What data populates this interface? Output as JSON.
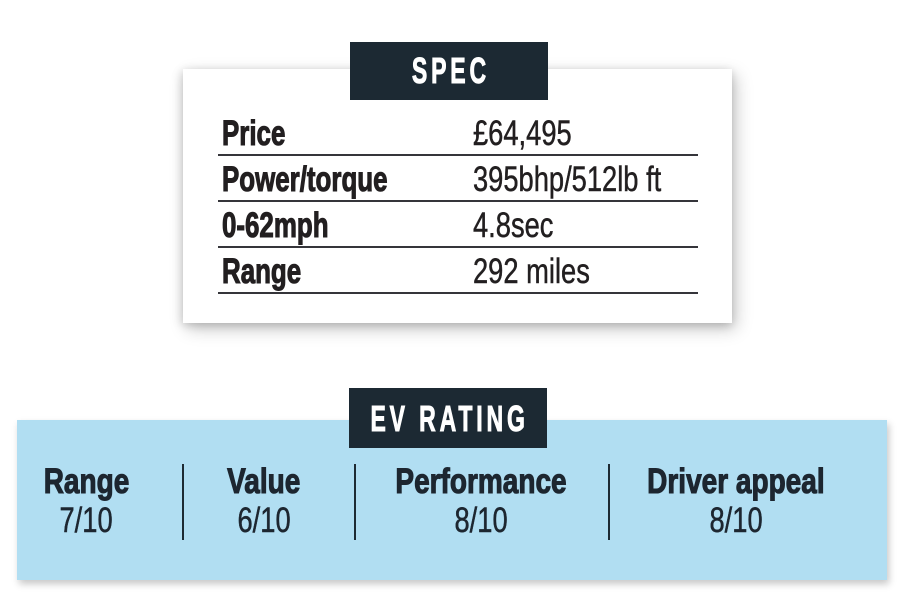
{
  "spec_card": {
    "title": "SPEC",
    "rows": [
      {
        "label": "Price",
        "value": "£64,495"
      },
      {
        "label": "Power/torque",
        "value": "395bhp/512lb ft"
      },
      {
        "label": "0-62mph",
        "value": "4.8sec"
      },
      {
        "label": "Range",
        "value": "292 miles"
      }
    ]
  },
  "ev_rating": {
    "title": "EV RATING",
    "items": [
      {
        "label": "Range",
        "value": "7/10"
      },
      {
        "label": "Value",
        "value": "6/10"
      },
      {
        "label": "Performance",
        "value": "8/10"
      },
      {
        "label": "Driver appeal",
        "value": "8/10"
      }
    ]
  },
  "colors": {
    "banner_bg": "#1c2933",
    "band_bg": "#b1def2",
    "text": "#221f20"
  }
}
